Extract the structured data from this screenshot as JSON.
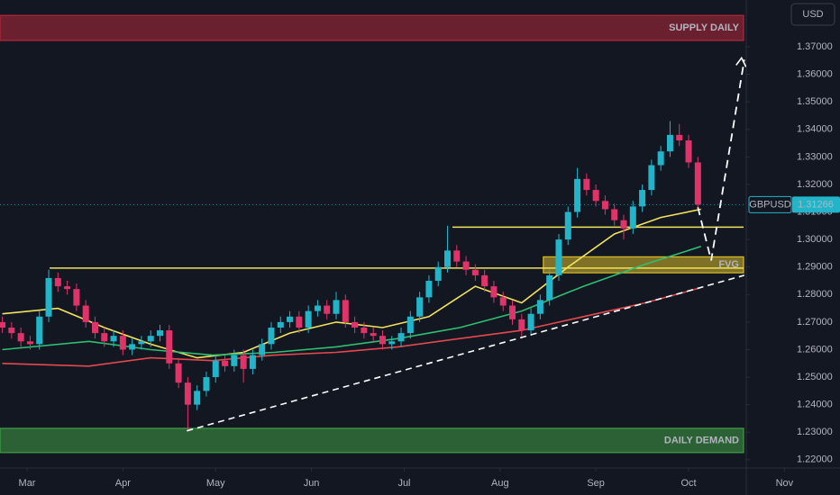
{
  "chart_data": {
    "type": "candlestick",
    "symbol": "GBPUSD",
    "currency": "USD",
    "last_price": 1.31266,
    "up_color": "#22b5c9",
    "down_color": "#e0336a",
    "xlim": [
      -8.75,
      262.97
    ],
    "ylim": [
      1.217,
      1.387
    ],
    "xticks": [
      {
        "value": 0,
        "label": "Mar"
      },
      {
        "value": 31,
        "label": "Apr"
      },
      {
        "value": 61,
        "label": "May"
      },
      {
        "value": 92,
        "label": "Jun"
      },
      {
        "value": 122,
        "label": "Jul"
      },
      {
        "value": 153,
        "label": "Aug"
      },
      {
        "value": 184,
        "label": "Sep"
      },
      {
        "value": 214,
        "label": "Oct"
      },
      {
        "value": 245,
        "label": "Nov"
      }
    ],
    "yticks": [
      {
        "value": 1.37,
        "label": "1.37000"
      },
      {
        "value": 1.36,
        "label": "1.36000"
      },
      {
        "value": 1.35,
        "label": "1.35000"
      },
      {
        "value": 1.34,
        "label": "1.34000"
      },
      {
        "value": 1.33,
        "label": "1.33000"
      },
      {
        "value": 1.32,
        "label": "1.32000"
      },
      {
        "value": 1.31,
        "label": "1.31000"
      },
      {
        "value": 1.3,
        "label": "1.30000"
      },
      {
        "value": 1.29,
        "label": "1.29000"
      },
      {
        "value": 1.28,
        "label": "1.28000"
      },
      {
        "value": 1.27,
        "label": "1.27000"
      },
      {
        "value": 1.26,
        "label": "1.26000"
      },
      {
        "value": 1.25,
        "label": "1.25000"
      },
      {
        "value": 1.24,
        "label": "1.24000"
      },
      {
        "value": 1.23,
        "label": "1.23000"
      },
      {
        "value": 1.22,
        "label": "1.22000"
      }
    ],
    "x": [
      -8,
      -5,
      -2,
      1,
      4,
      7,
      10,
      13,
      16,
      19,
      22,
      25,
      28,
      31,
      34,
      37,
      40,
      43,
      46,
      49,
      52,
      55,
      58,
      61,
      64,
      67,
      70,
      73,
      76,
      79,
      82,
      85,
      88,
      91,
      94,
      97,
      100,
      103,
      106,
      109,
      112,
      115,
      118,
      121,
      124,
      127,
      130,
      133,
      136,
      139,
      142,
      145,
      148,
      151,
      154,
      157,
      160,
      163,
      166,
      169,
      172,
      175,
      178,
      181,
      184,
      187,
      190,
      193,
      196,
      199,
      202,
      205,
      208,
      211,
      214,
      217
    ],
    "open": [
      1.27,
      1.268,
      1.266,
      1.263,
      1.262,
      1.272,
      1.286,
      1.283,
      1.282,
      1.276,
      1.27,
      1.266,
      1.263,
      1.265,
      1.26,
      1.262,
      1.263,
      1.265,
      1.267,
      1.255,
      1.248,
      1.24,
      1.245,
      1.25,
      1.256,
      1.254,
      1.258,
      1.253,
      1.258,
      1.262,
      1.268,
      1.27,
      1.272,
      1.268,
      1.274,
      1.276,
      1.273,
      1.278,
      1.27,
      1.268,
      1.266,
      1.265,
      1.262,
      1.263,
      1.266,
      1.272,
      1.279,
      1.285,
      1.29,
      1.296,
      1.292,
      1.289,
      1.287,
      1.283,
      1.279,
      1.276,
      1.271,
      1.267,
      1.273,
      1.278,
      1.287,
      1.3,
      1.31,
      1.322,
      1.318,
      1.314,
      1.311,
      1.307,
      1.304,
      1.312,
      1.318,
      1.327,
      1.332,
      1.338,
      1.336,
      1.328
    ],
    "high": [
      1.272,
      1.27,
      1.268,
      1.265,
      1.274,
      1.289,
      1.288,
      1.285,
      1.284,
      1.278,
      1.272,
      1.268,
      1.267,
      1.267,
      1.264,
      1.265,
      1.267,
      1.269,
      1.269,
      1.257,
      1.25,
      1.247,
      1.252,
      1.258,
      1.258,
      1.26,
      1.26,
      1.26,
      1.264,
      1.27,
      1.272,
      1.274,
      1.274,
      1.276,
      1.278,
      1.278,
      1.281,
      1.28,
      1.272,
      1.27,
      1.268,
      1.267,
      1.265,
      1.268,
      1.274,
      1.281,
      1.287,
      1.292,
      1.305,
      1.298,
      1.294,
      1.291,
      1.289,
      1.285,
      1.281,
      1.278,
      1.273,
      1.275,
      1.28,
      1.289,
      1.302,
      1.312,
      1.326,
      1.324,
      1.32,
      1.316,
      1.313,
      1.309,
      1.314,
      1.32,
      1.329,
      1.334,
      1.343,
      1.342,
      1.338,
      1.33
    ],
    "low": [
      1.266,
      1.264,
      1.261,
      1.26,
      1.26,
      1.27,
      1.281,
      1.28,
      1.274,
      1.268,
      1.264,
      1.261,
      1.261,
      1.258,
      1.258,
      1.26,
      1.261,
      1.263,
      1.253,
      1.246,
      1.231,
      1.238,
      1.243,
      1.248,
      1.252,
      1.252,
      1.248,
      1.251,
      1.256,
      1.26,
      1.266,
      1.268,
      1.266,
      1.266,
      1.272,
      1.271,
      1.271,
      1.268,
      1.266,
      1.264,
      1.263,
      1.26,
      1.26,
      1.261,
      1.264,
      1.27,
      1.277,
      1.283,
      1.288,
      1.29,
      1.287,
      1.285,
      1.281,
      1.277,
      1.274,
      1.269,
      1.264,
      1.265,
      1.271,
      1.276,
      1.285,
      1.298,
      1.308,
      1.316,
      1.312,
      1.309,
      1.305,
      1.3,
      1.302,
      1.31,
      1.316,
      1.325,
      1.33,
      1.334,
      1.326,
      1.3107
    ],
    "close": [
      1.268,
      1.266,
      1.263,
      1.262,
      1.272,
      1.286,
      1.283,
      1.282,
      1.276,
      1.27,
      1.266,
      1.263,
      1.265,
      1.26,
      1.262,
      1.263,
      1.265,
      1.267,
      1.255,
      1.248,
      1.24,
      1.245,
      1.25,
      1.256,
      1.254,
      1.258,
      1.253,
      1.258,
      1.262,
      1.268,
      1.27,
      1.272,
      1.268,
      1.274,
      1.276,
      1.273,
      1.278,
      1.27,
      1.268,
      1.266,
      1.265,
      1.262,
      1.263,
      1.266,
      1.272,
      1.279,
      1.285,
      1.29,
      1.296,
      1.292,
      1.289,
      1.287,
      1.283,
      1.279,
      1.276,
      1.271,
      1.267,
      1.273,
      1.278,
      1.287,
      1.3,
      1.31,
      1.322,
      1.318,
      1.314,
      1.311,
      1.307,
      1.304,
      1.312,
      1.318,
      1.327,
      1.332,
      1.338,
      1.336,
      1.328,
      1.3127
    ],
    "moving_averages": [
      {
        "color": "#f2e35e",
        "x": [
          -8,
          10,
          25,
          40,
          55,
          70,
          85,
          100,
          115,
          130,
          145,
          160,
          175,
          190,
          205,
          218
        ],
        "values": [
          1.273,
          1.275,
          1.268,
          1.262,
          1.257,
          1.259,
          1.266,
          1.27,
          1.268,
          1.272,
          1.283,
          1.277,
          1.29,
          1.302,
          1.308,
          1.311
        ]
      },
      {
        "color": "#2fbf71",
        "x": [
          -8,
          20,
          40,
          60,
          80,
          100,
          120,
          140,
          160,
          180,
          200,
          218
        ],
        "values": [
          1.26,
          1.263,
          1.26,
          1.258,
          1.259,
          1.261,
          1.264,
          1.268,
          1.274,
          1.283,
          1.291,
          1.2975
        ]
      },
      {
        "color": "#e5484d",
        "x": [
          -8,
          20,
          40,
          60,
          80,
          100,
          120,
          140,
          160,
          180,
          200,
          218
        ],
        "values": [
          1.255,
          1.254,
          1.257,
          1.256,
          1.258,
          1.259,
          1.261,
          1.264,
          1.267,
          1.272,
          1.277,
          1.2825
        ]
      }
    ],
    "zones": [
      {
        "label": "SUPPLY DAILY",
        "range": [
          1.3723,
          1.3814
        ],
        "color": "#b4283c"
      },
      {
        "label": "DAILY DEMAND",
        "range": [
          1.2226,
          1.2314
        ],
        "color": "#3f9f46"
      },
      {
        "label": "FVG",
        "range": [
          1.2879,
          1.2937
        ],
        "x_start": 167,
        "color": "#d9bd2a"
      }
    ],
    "levels": [
      {
        "value": 1.2896,
        "x_start": 7.3,
        "color": "#f2e35e"
      },
      {
        "value": 1.3045,
        "x_start": 137.6,
        "color": "#f2e35e"
      }
    ],
    "trendline": {
      "x": [
        51.7,
        232
      ],
      "values": [
        1.2305,
        1.287
      ]
    },
    "projection": {
      "x": [
        217,
        221.3,
        232
      ],
      "values": [
        1.3117,
        1.2924,
        1.3653
      ]
    }
  }
}
